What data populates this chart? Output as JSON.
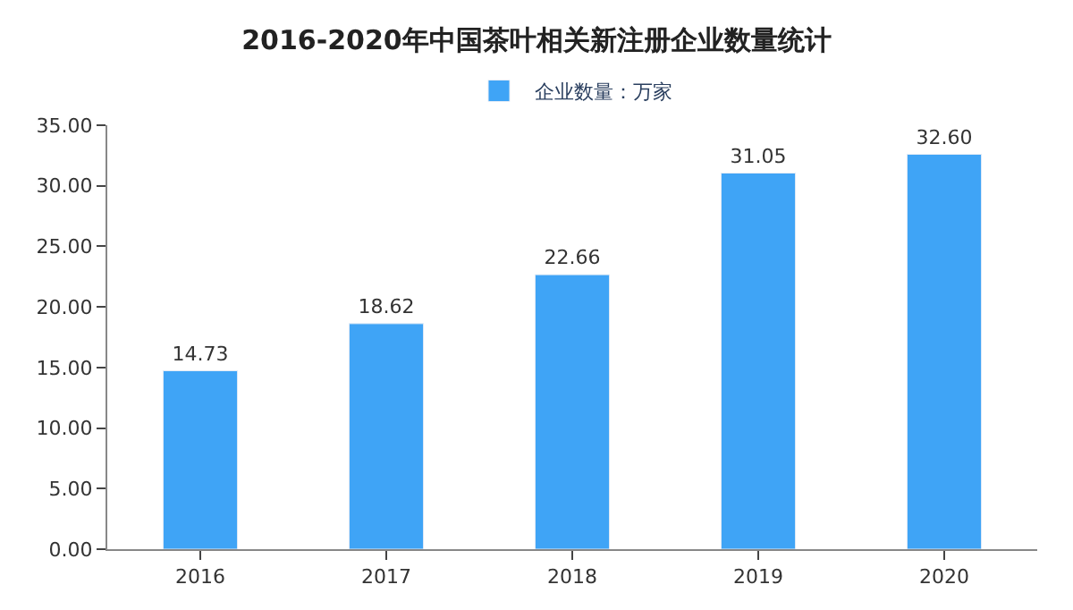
{
  "chart_data": {
    "type": "bar",
    "title": "2016-2020年中国茶叶相关新注册企业数量统计",
    "categories": [
      "2016",
      "2017",
      "2018",
      "2019",
      "2020"
    ],
    "series": [
      {
        "name": "企业数量：万家",
        "color": "#3fa4f6",
        "values": [
          14.73,
          18.62,
          22.66,
          31.05,
          32.6
        ],
        "value_labels": [
          "14.73",
          "18.62",
          "22.66",
          "31.05",
          "32.60"
        ]
      }
    ],
    "ylim": [
      0,
      35
    ],
    "yticks": [
      {
        "value": 0,
        "label": "0.00"
      },
      {
        "value": 5,
        "label": "5.00"
      },
      {
        "value": 10,
        "label": "10.00"
      },
      {
        "value": 15,
        "label": "15.00"
      },
      {
        "value": 20,
        "label": "20.00"
      },
      {
        "value": 25,
        "label": "25.00"
      },
      {
        "value": 30,
        "label": "30.00"
      },
      {
        "value": 35,
        "label": "35.00"
      }
    ],
    "legend": "top"
  }
}
